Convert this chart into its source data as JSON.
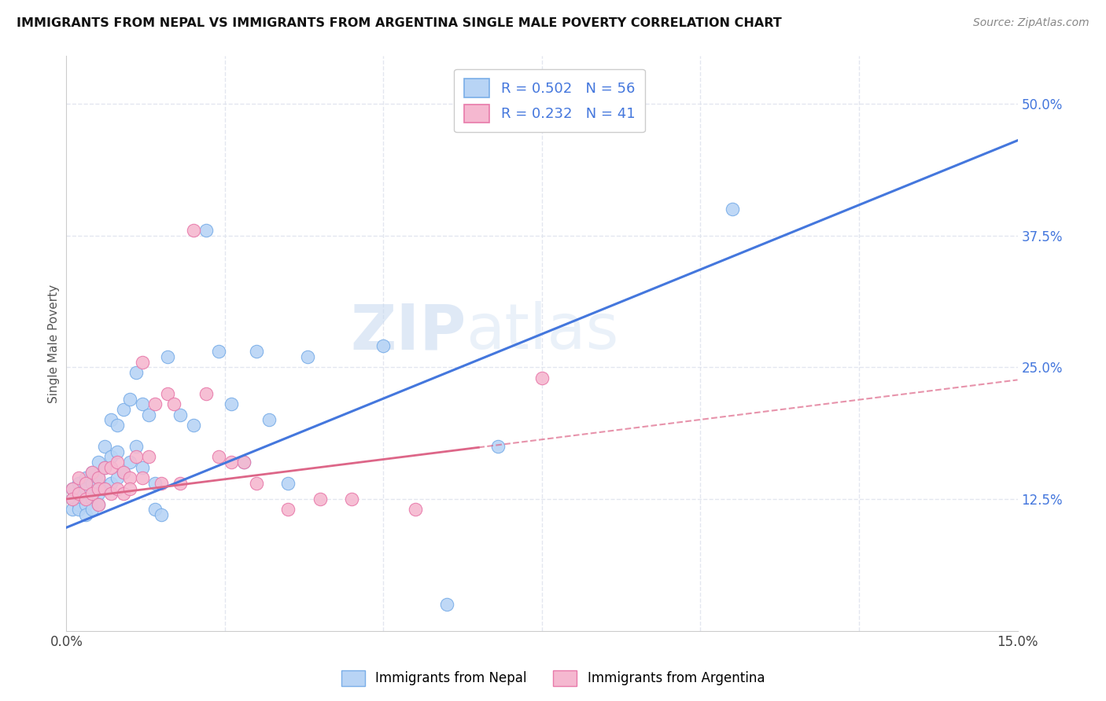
{
  "title": "IMMIGRANTS FROM NEPAL VS IMMIGRANTS FROM ARGENTINA SINGLE MALE POVERTY CORRELATION CHART",
  "source": "Source: ZipAtlas.com",
  "ylabel": "Single Male Poverty",
  "yticks_labels": [
    "12.5%",
    "25.0%",
    "37.5%",
    "50.0%"
  ],
  "ytick_vals": [
    0.125,
    0.25,
    0.375,
    0.5
  ],
  "xlim": [
    0.0,
    0.15
  ],
  "ylim": [
    0.0,
    0.545
  ],
  "nepal_color": "#b8d4f5",
  "nepal_edge": "#7aaee8",
  "argentina_color": "#f5b8d0",
  "argentina_edge": "#e87aaa",
  "line_nepal_color": "#4477dd",
  "line_argentina_color": "#dd6688",
  "line_nepal_solid": true,
  "line_argentina_dashed": true,
  "nepal_line_x0": 0.0,
  "nepal_line_y0": 0.098,
  "nepal_line_x1": 0.15,
  "nepal_line_y1": 0.465,
  "argentina_line_x0": 0.0,
  "argentina_line_y0": 0.125,
  "argentina_line_x1": 0.15,
  "argentina_line_y1": 0.238,
  "legend_label1": "R = 0.502   N = 56",
  "legend_label2": "R = 0.232   N = 41",
  "watermark_zip": "ZIP",
  "watermark_atlas": "atlas",
  "background_color": "#ffffff",
  "grid_color": "#e0e4ee",
  "nepal_scatter_x": [
    0.001,
    0.001,
    0.001,
    0.002,
    0.002,
    0.002,
    0.002,
    0.003,
    0.003,
    0.003,
    0.003,
    0.004,
    0.004,
    0.004,
    0.004,
    0.005,
    0.005,
    0.005,
    0.005,
    0.006,
    0.006,
    0.006,
    0.007,
    0.007,
    0.007,
    0.008,
    0.008,
    0.008,
    0.009,
    0.009,
    0.01,
    0.01,
    0.011,
    0.011,
    0.012,
    0.012,
    0.013,
    0.014,
    0.014,
    0.015,
    0.016,
    0.018,
    0.02,
    0.022,
    0.024,
    0.026,
    0.028,
    0.03,
    0.032,
    0.035,
    0.038,
    0.05,
    0.06,
    0.068,
    0.09,
    0.105
  ],
  "nepal_scatter_y": [
    0.135,
    0.125,
    0.115,
    0.14,
    0.13,
    0.12,
    0.115,
    0.145,
    0.135,
    0.12,
    0.11,
    0.15,
    0.14,
    0.125,
    0.115,
    0.16,
    0.145,
    0.13,
    0.12,
    0.175,
    0.155,
    0.135,
    0.2,
    0.165,
    0.14,
    0.195,
    0.17,
    0.145,
    0.21,
    0.15,
    0.22,
    0.16,
    0.245,
    0.175,
    0.215,
    0.155,
    0.205,
    0.115,
    0.14,
    0.11,
    0.26,
    0.205,
    0.195,
    0.38,
    0.265,
    0.215,
    0.16,
    0.265,
    0.2,
    0.14,
    0.26,
    0.27,
    0.025,
    0.175,
    0.5,
    0.4
  ],
  "argentina_scatter_x": [
    0.001,
    0.001,
    0.002,
    0.002,
    0.003,
    0.003,
    0.004,
    0.004,
    0.005,
    0.005,
    0.005,
    0.006,
    0.006,
    0.007,
    0.007,
    0.008,
    0.008,
    0.009,
    0.009,
    0.01,
    0.01,
    0.011,
    0.012,
    0.012,
    0.013,
    0.014,
    0.015,
    0.016,
    0.017,
    0.018,
    0.02,
    0.022,
    0.024,
    0.026,
    0.028,
    0.03,
    0.035,
    0.04,
    0.045,
    0.055,
    0.075
  ],
  "argentina_scatter_y": [
    0.135,
    0.125,
    0.145,
    0.13,
    0.14,
    0.125,
    0.15,
    0.13,
    0.145,
    0.135,
    0.12,
    0.155,
    0.135,
    0.155,
    0.13,
    0.16,
    0.135,
    0.15,
    0.13,
    0.145,
    0.135,
    0.165,
    0.145,
    0.255,
    0.165,
    0.215,
    0.14,
    0.225,
    0.215,
    0.14,
    0.38,
    0.225,
    0.165,
    0.16,
    0.16,
    0.14,
    0.115,
    0.125,
    0.125,
    0.115,
    0.24
  ]
}
